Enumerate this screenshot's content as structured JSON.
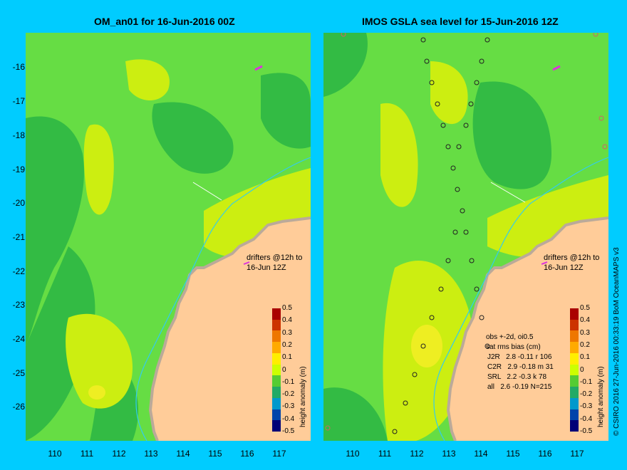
{
  "left_panel": {
    "title": "OM_an01 for 16-Jun-2016 00Z",
    "annotation_line1": "drifters @12h to",
    "annotation_line2": "16-Jun 12Z"
  },
  "right_panel": {
    "title": "IMOS GSLA sea level  for 15-Jun-2016 12Z",
    "annotation_line1": "drifters @12h to",
    "annotation_line2": "16-Jun 12Z",
    "stats": {
      "line1": "obs +-2d, oi0.5",
      "line2": "sat rms bias (cm)",
      "rows": [
        "J2R   2.8 -0.11 r 106",
        "C2R   2.9 -0.18 m 31",
        "SRL   2.2 -0.3 k 78",
        "all   2.6 -0.19 N=215"
      ]
    }
  },
  "axes": {
    "y_ticks": [
      "-16",
      "-17",
      "-18",
      "-19",
      "-20",
      "-21",
      "-22",
      "-23",
      "-24",
      "-25",
      "-26"
    ],
    "x_ticks": [
      "110",
      "111",
      "112",
      "113",
      "114",
      "115",
      "116",
      "117"
    ]
  },
  "colorbar": {
    "title": "height anomaly (m)",
    "labels": [
      "0.5",
      "0.4",
      "0.3",
      "0.2",
      "0.1",
      "0",
      "-0.1",
      "-0.2",
      "-0.3",
      "-0.4",
      "-0.5"
    ],
    "colors": [
      "#aa0000",
      "#cc3300",
      "#ee7700",
      "#ffaa00",
      "#ffee00",
      "#ccff00",
      "#55cc33",
      "#22aa66",
      "#0099cc",
      "#0044aa",
      "#000077"
    ]
  },
  "credit": "© CSIRO 2016  27-Jun-2016 00:33:19 BoM OceanMAPS v3",
  "colors": {
    "background": "#00ccff",
    "land": "#ffcc99",
    "coast": "#bbaa99",
    "light_green": "#66dd44",
    "dark_green": "#33bb44",
    "yellow_green": "#ccee11",
    "yellow": "#eeee22"
  }
}
